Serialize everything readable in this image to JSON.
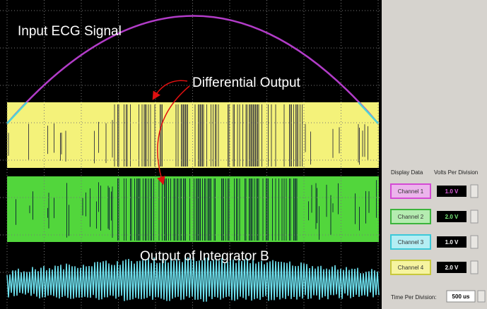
{
  "scope": {
    "labels": {
      "input": "Input ECG Signal",
      "differential": "Differential Output",
      "integrator": "Output of Integrator B"
    }
  },
  "panel": {
    "display_data": "Display Data",
    "volts_per_division": "Volts Per Division",
    "channels": [
      {
        "name": "Channel 1",
        "volts": "1.0 V"
      },
      {
        "name": "Channel 2",
        "volts": "2.0 V"
      },
      {
        "name": "Channel 3",
        "volts": "1.0 V"
      },
      {
        "name": "Channel 4",
        "volts": "2.0 V"
      }
    ],
    "time_label": "Time Per Division:",
    "time_value": "500 us"
  }
}
